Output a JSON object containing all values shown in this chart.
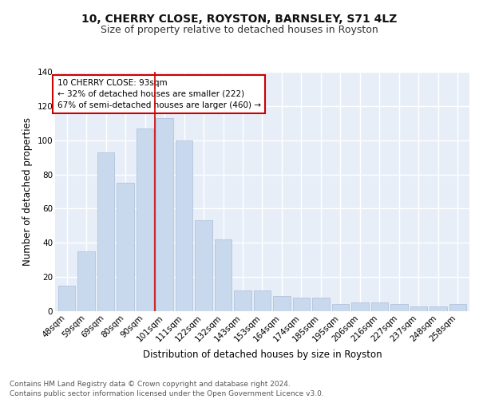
{
  "title1": "10, CHERRY CLOSE, ROYSTON, BARNSLEY, S71 4LZ",
  "title2": "Size of property relative to detached houses in Royston",
  "xlabel": "Distribution of detached houses by size in Royston",
  "ylabel": "Number of detached properties",
  "categories": [
    "48sqm",
    "59sqm",
    "69sqm",
    "80sqm",
    "90sqm",
    "101sqm",
    "111sqm",
    "122sqm",
    "132sqm",
    "143sqm",
    "153sqm",
    "164sqm",
    "174sqm",
    "185sqm",
    "195sqm",
    "206sqm",
    "216sqm",
    "227sqm",
    "237sqm",
    "248sqm",
    "258sqm"
  ],
  "values": [
    15,
    35,
    93,
    75,
    107,
    113,
    100,
    53,
    42,
    12,
    12,
    9,
    8,
    8,
    4,
    5,
    5,
    4,
    3,
    3,
    4
  ],
  "bar_color": "#c8d9ee",
  "bar_edge_color": "#aabdd8",
  "vline_x": 4.5,
  "vline_color": "#cc0000",
  "annotation_text": "10 CHERRY CLOSE: 93sqm\n← 32% of detached houses are smaller (222)\n67% of semi-detached houses are larger (460) →",
  "annotation_box_color": "#ffffff",
  "annotation_box_edge_color": "#cc0000",
  "ylim": [
    0,
    140
  ],
  "yticks": [
    0,
    20,
    40,
    60,
    80,
    100,
    120,
    140
  ],
  "footer_text": "Contains HM Land Registry data © Crown copyright and database right 2024.\nContains public sector information licensed under the Open Government Licence v3.0.",
  "background_color": "#e8eef8",
  "grid_color": "#ffffff",
  "title1_fontsize": 10,
  "title2_fontsize": 9,
  "axis_label_fontsize": 8.5,
  "tick_fontsize": 7.5,
  "annotation_fontsize": 7.5,
  "footer_fontsize": 6.5
}
